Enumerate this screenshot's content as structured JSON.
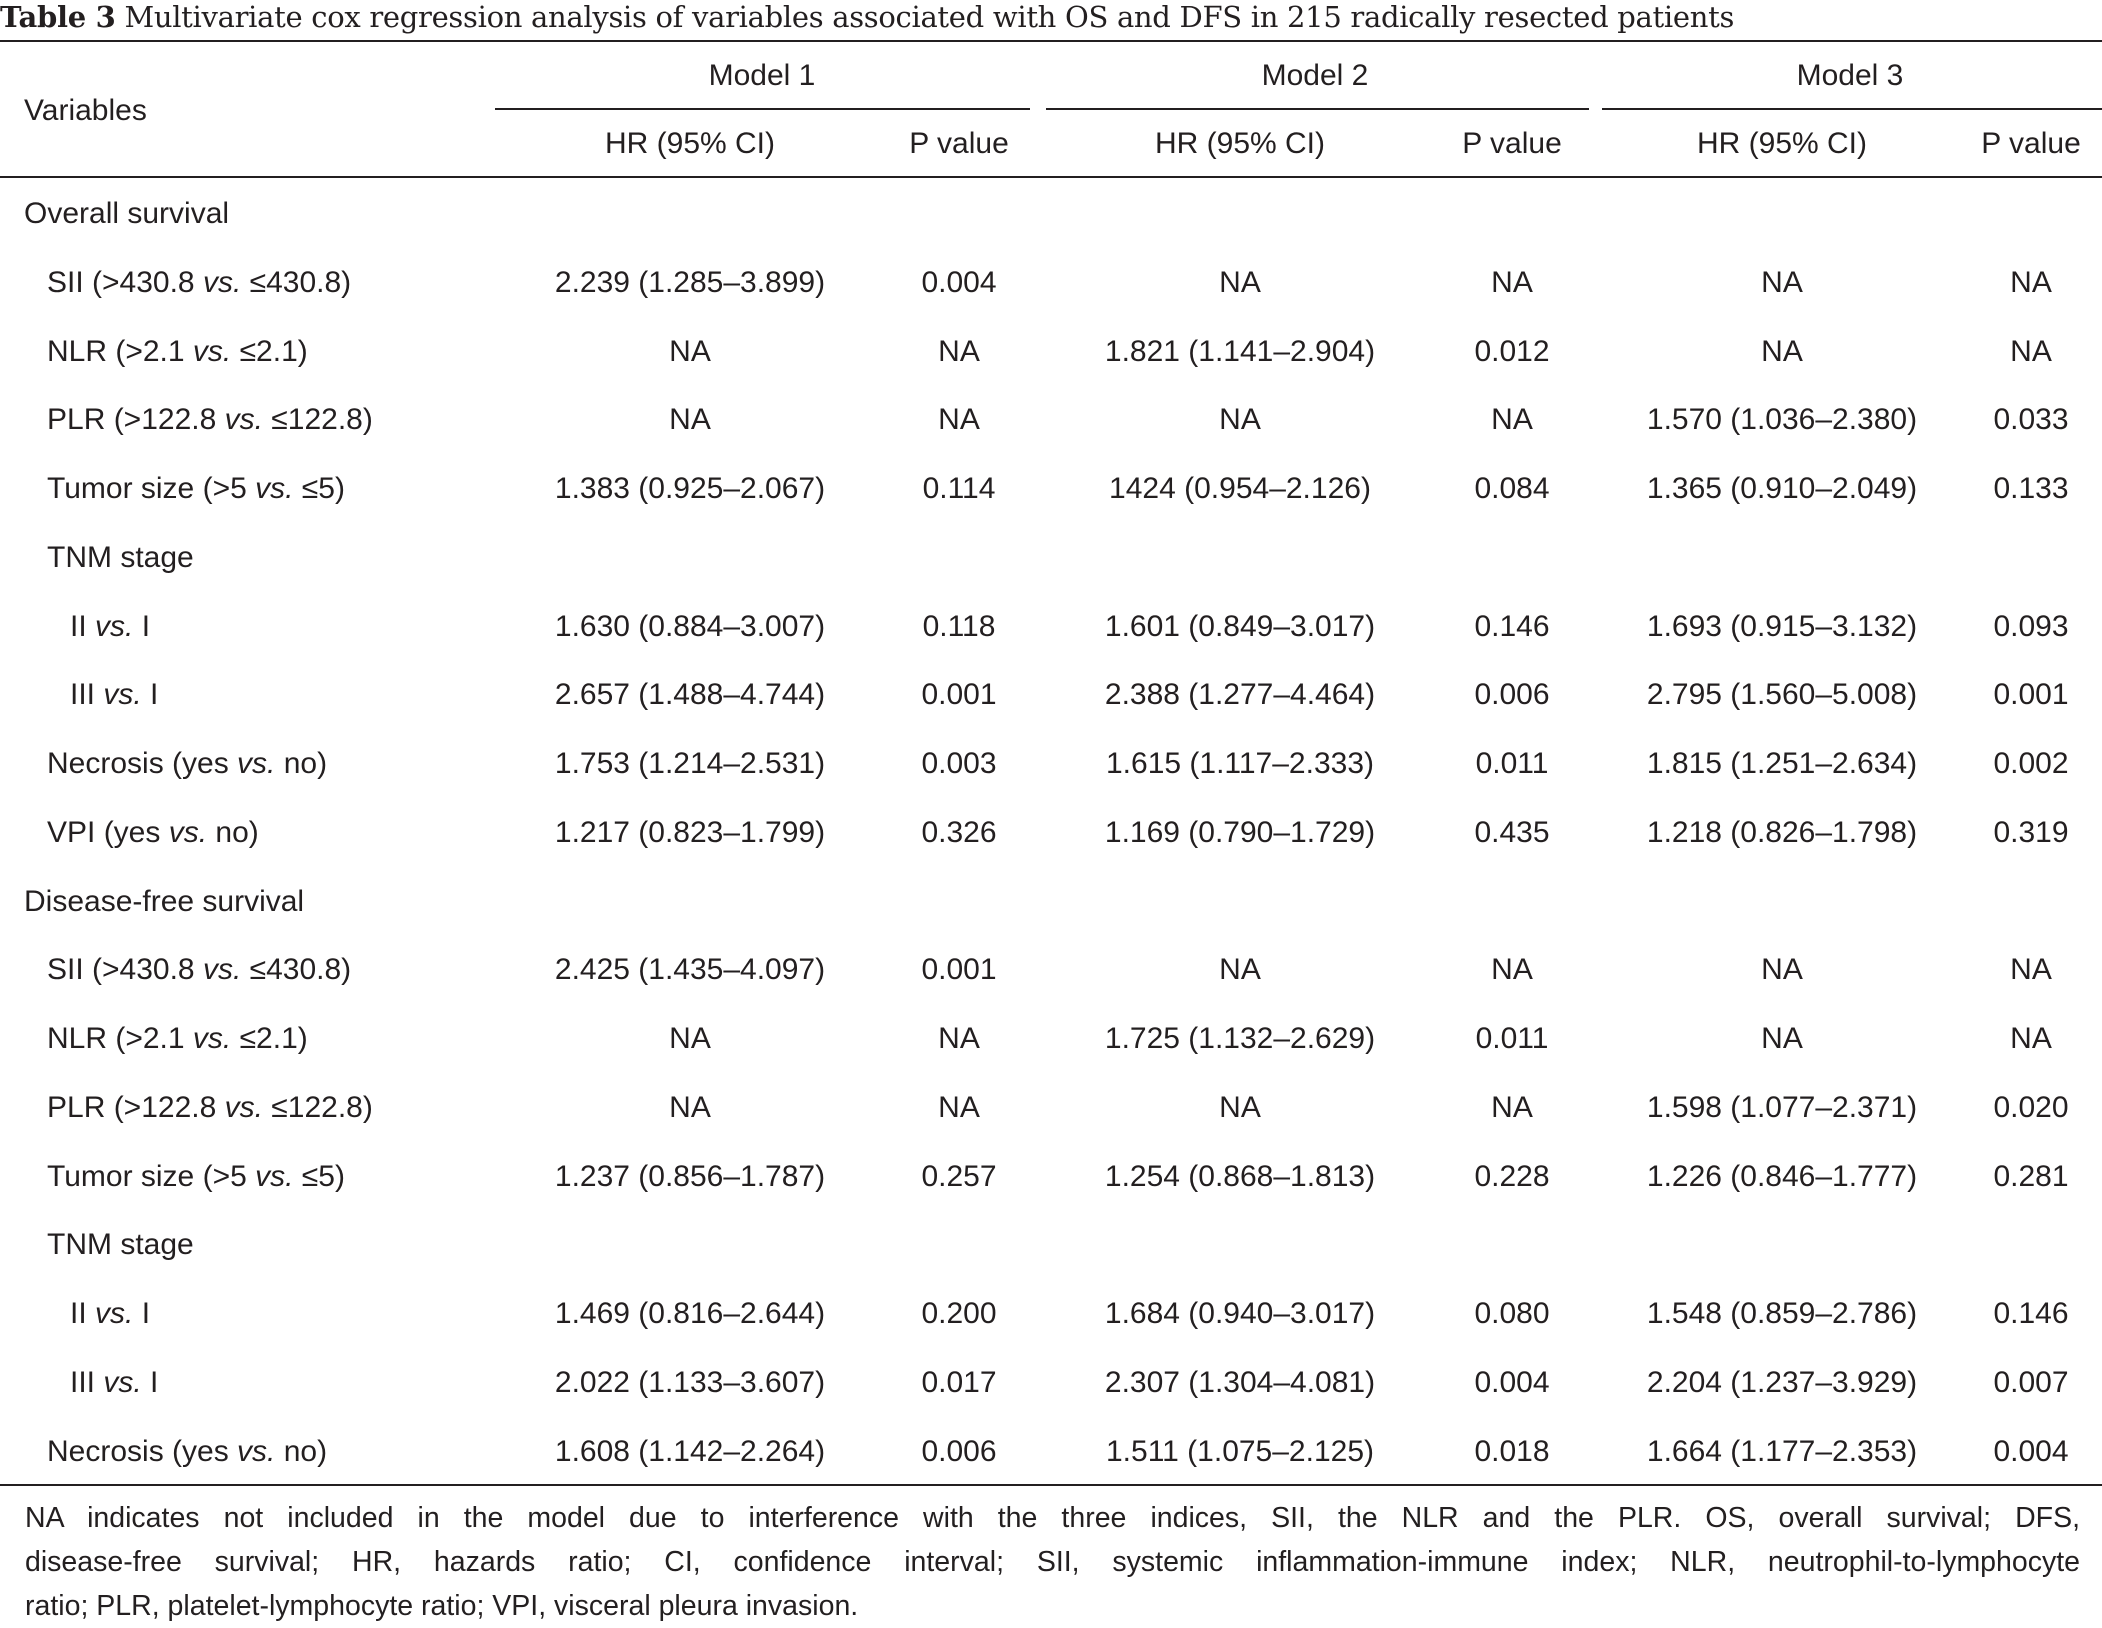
{
  "caption": {
    "label": "Table 3",
    "text": "Multivariate cox regression analysis of variables associated with OS and DFS in 215 radically resected patients"
  },
  "header": {
    "variables": "Variables",
    "models": [
      "Model 1",
      "Model 2",
      "Model 3"
    ],
    "hr": "HR (95% CI)",
    "p": "P value"
  },
  "rows": [
    {
      "type": "section",
      "label": "Overall survival"
    },
    {
      "type": "row",
      "indent": 1,
      "pre": "SII (>430.8 ",
      "vs": "vs.",
      "post": " ≤430.8)",
      "cells": [
        "2.239 (1.285–3.899)",
        "0.004",
        "NA",
        "NA",
        "NA",
        "NA"
      ]
    },
    {
      "type": "row",
      "indent": 1,
      "pre": "NLR (>2.1 ",
      "vs": "vs.",
      "post": " ≤2.1)",
      "cells": [
        "NA",
        "NA",
        "1.821 (1.141–2.904)",
        "0.012",
        "NA",
        "NA"
      ]
    },
    {
      "type": "row",
      "indent": 1,
      "pre": "PLR (>122.8 ",
      "vs": "vs.",
      "post": " ≤122.8)",
      "cells": [
        "NA",
        "NA",
        "NA",
        "NA",
        "1.570 (1.036–2.380)",
        "0.033"
      ]
    },
    {
      "type": "row",
      "indent": 1,
      "pre": "Tumor size (>5 ",
      "vs": "vs.",
      "post": " ≤5)",
      "cells": [
        "1.383 (0.925–2.067)",
        "0.114",
        "1424 (0.954–2.126)",
        "0.084",
        "1.365 (0.910–2.049)",
        "0.133"
      ]
    },
    {
      "type": "row",
      "indent": 1,
      "pre": "TNM stage",
      "vs": "",
      "post": "",
      "cells": [
        "",
        "",
        "",
        "",
        "",
        ""
      ]
    },
    {
      "type": "row",
      "indent": 2,
      "pre": "II ",
      "vs": "vs.",
      "post": " I",
      "cells": [
        "1.630 (0.884–3.007)",
        "0.118",
        "1.601 (0.849–3.017)",
        "0.146",
        "1.693 (0.915–3.132)",
        "0.093"
      ]
    },
    {
      "type": "row",
      "indent": 2,
      "pre": "III ",
      "vs": "vs.",
      "post": " I",
      "cells": [
        "2.657 (1.488–4.744)",
        "0.001",
        "2.388 (1.277–4.464)",
        "0.006",
        "2.795 (1.560–5.008)",
        "0.001"
      ]
    },
    {
      "type": "row",
      "indent": 1,
      "pre": "Necrosis (yes ",
      "vs": "vs.",
      "post": " no)",
      "cells": [
        "1.753 (1.214–2.531)",
        "0.003",
        "1.615 (1.117–2.333)",
        "0.011",
        "1.815 (1.251–2.634)",
        "0.002"
      ]
    },
    {
      "type": "row",
      "indent": 1,
      "pre": "VPI (yes ",
      "vs": "vs.",
      "post": " no)",
      "cells": [
        "1.217 (0.823–1.799)",
        "0.326",
        "1.169 (0.790–1.729)",
        "0.435",
        "1.218 (0.826–1.798)",
        "0.319"
      ]
    },
    {
      "type": "section",
      "label": "Disease-free survival"
    },
    {
      "type": "row",
      "indent": 1,
      "pre": "SII (>430.8 ",
      "vs": "vs.",
      "post": " ≤430.8)",
      "cells": [
        "2.425 (1.435–4.097)",
        "0.001",
        "NA",
        "NA",
        "NA",
        "NA"
      ]
    },
    {
      "type": "row",
      "indent": 1,
      "pre": "NLR (>2.1 ",
      "vs": "vs.",
      "post": " ≤2.1)",
      "cells": [
        "NA",
        "NA",
        "1.725 (1.132–2.629)",
        "0.011",
        "NA",
        "NA"
      ]
    },
    {
      "type": "row",
      "indent": 1,
      "pre": "PLR (>122.8 ",
      "vs": "vs.",
      "post": " ≤122.8)",
      "cells": [
        "NA",
        "NA",
        "NA",
        "NA",
        "1.598 (1.077–2.371)",
        "0.020"
      ]
    },
    {
      "type": "row",
      "indent": 1,
      "pre": "Tumor size (>5 ",
      "vs": "vs.",
      "post": " ≤5)",
      "cells": [
        "1.237 (0.856–1.787)",
        "0.257",
        "1.254 (0.868–1.813)",
        "0.228",
        "1.226 (0.846–1.777)",
        "0.281"
      ]
    },
    {
      "type": "row",
      "indent": 1,
      "pre": "TNM stage",
      "vs": "",
      "post": "",
      "cells": [
        "",
        "",
        "",
        "",
        "",
        ""
      ]
    },
    {
      "type": "row",
      "indent": 2,
      "pre": "II ",
      "vs": "vs.",
      "post": " I",
      "cells": [
        "1.469 (0.816–2.644)",
        "0.200",
        "1.684 (0.940–3.017)",
        "0.080",
        "1.548 (0.859–2.786)",
        "0.146"
      ]
    },
    {
      "type": "row",
      "indent": 2,
      "pre": "III ",
      "vs": "vs.",
      "post": " I",
      "cells": [
        "2.022 (1.133–3.607)",
        "0.017",
        "2.307 (1.304–4.081)",
        "0.004",
        "2.204 (1.237–3.929)",
        "0.007"
      ]
    },
    {
      "type": "row",
      "indent": 1,
      "pre": "Necrosis (yes ",
      "vs": "vs.",
      "post": " no)",
      "cells": [
        "1.608 (1.142–2.264)",
        "0.006",
        "1.511 (1.075–2.125)",
        "0.018",
        "1.664 (1.177–2.353)",
        "0.004"
      ]
    }
  ],
  "footnote": [
    "NA indicates not included in the model due to interference with the three indices, SII, the NLR and the PLR. OS, overall survival; DFS,",
    "disease-free survival; HR, hazards ratio; CI, confidence interval; SII, systemic inflammation-immune index; NLR, neutrophil-to-lymphocyte",
    "ratio; PLR, platelet-lymphocyte ratio; VPI, visceral pleura invasion."
  ]
}
